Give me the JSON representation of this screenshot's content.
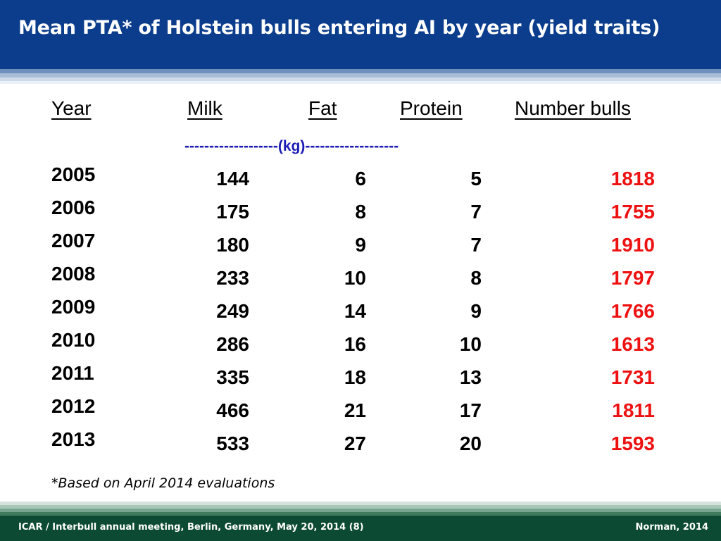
{
  "slide": {
    "title": "Mean PTA* of Holstein bulls entering AI by year (yield traits)",
    "colors": {
      "header": "#0b3d8c",
      "footer": "#0d4a33",
      "bulls": "#ee1111",
      "unit": "#1c1cb4"
    }
  },
  "table": {
    "headers": {
      "year": "Year",
      "milk": "Milk",
      "fat": "Fat",
      "protein": "Protein",
      "bulls": "Number bulls"
    },
    "unit_label": "-------------------(kg)-------------------",
    "rows": [
      {
        "year": "2005",
        "milk": "144",
        "fat": "6",
        "protein": "5",
        "bulls": "1818"
      },
      {
        "year": "2006",
        "milk": "175",
        "fat": "8",
        "protein": "7",
        "bulls": "1755"
      },
      {
        "year": "2007",
        "milk": "180",
        "fat": "9",
        "protein": "7",
        "bulls": "1910"
      },
      {
        "year": "2008",
        "milk": "233",
        "fat": "10",
        "protein": "8",
        "bulls": "1797"
      },
      {
        "year": "2009",
        "milk": "249",
        "fat": "14",
        "protein": "9",
        "bulls": "1766"
      },
      {
        "year": "2010",
        "milk": "286",
        "fat": "16",
        "protein": "10",
        "bulls": "1613"
      },
      {
        "year": "2011",
        "milk": "335",
        "fat": "18",
        "protein": "13",
        "bulls": "1731"
      },
      {
        "year": "2012",
        "milk": "466",
        "fat": "21",
        "protein": "17",
        "bulls": "1811"
      },
      {
        "year": "2013",
        "milk": "533",
        "fat": "27",
        "protein": "20",
        "bulls": "1593"
      }
    ]
  },
  "footnote": {
    "marker": "*",
    "text": "Based on April 2014 evaluations"
  },
  "footer": {
    "left": "ICAR / Interbull annual meeting, Berlin, Germany, May 20, 2014  (8)",
    "right": "Norman, 2014"
  }
}
